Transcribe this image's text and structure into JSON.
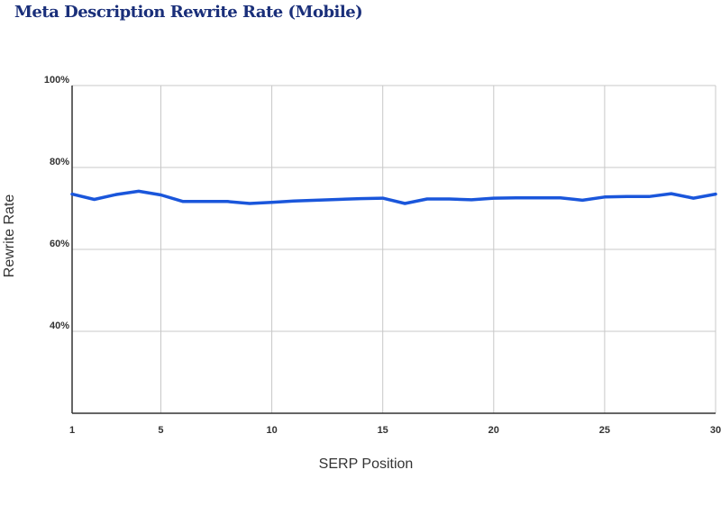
{
  "chart_data": {
    "type": "line",
    "title": "Meta Description Rewrite Rate (Mobile)",
    "xlabel": "SERP Position",
    "ylabel": "Rewrite Rate",
    "xlim": [
      1,
      30
    ],
    "ylim": [
      20,
      100
    ],
    "grid": true,
    "x_ticks": [
      {
        "value": 1,
        "label": "1"
      },
      {
        "value": 5,
        "label": "5"
      },
      {
        "value": 10,
        "label": "10"
      },
      {
        "value": 15,
        "label": "15"
      },
      {
        "value": 20,
        "label": "20"
      },
      {
        "value": 25,
        "label": "25"
      },
      {
        "value": 30,
        "label": "30"
      }
    ],
    "y_ticks": [
      {
        "value": 100,
        "label": "100%"
      },
      {
        "value": 80,
        "label": "80%"
      },
      {
        "value": 60,
        "label": "60%"
      },
      {
        "value": 40,
        "label": "40%"
      }
    ],
    "color": "#1a56db",
    "series": [
      {
        "x": [
          1,
          2,
          3,
          4,
          5,
          6,
          7,
          8,
          9,
          10,
          11,
          12,
          13,
          14,
          15,
          16,
          17,
          18,
          19,
          20,
          21,
          22,
          23,
          24,
          25,
          26,
          27,
          28,
          29,
          30
        ],
        "y": [
          73.5,
          72.2,
          73.4,
          74.2,
          73.3,
          71.7,
          71.7,
          71.7,
          71.2,
          71.5,
          71.8,
          72.0,
          72.2,
          72.4,
          72.5,
          71.2,
          72.3,
          72.3,
          72.1,
          72.5,
          72.6,
          72.6,
          72.6,
          72.0,
          72.8,
          72.9,
          72.9,
          73.6,
          72.5,
          73.5
        ]
      }
    ]
  }
}
